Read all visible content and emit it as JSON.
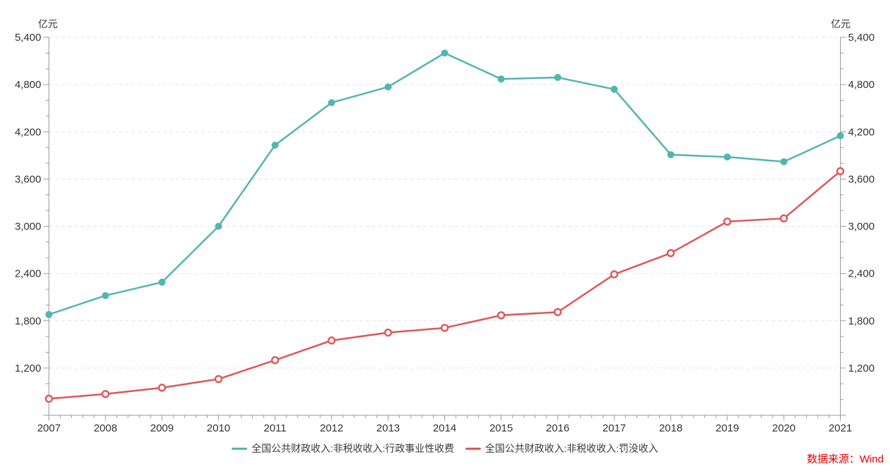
{
  "chart_data": {
    "type": "line",
    "title": "",
    "unit_label": "亿元",
    "x_categories": [
      "2007",
      "2008",
      "2009",
      "2010",
      "2011",
      "2012",
      "2013",
      "2014",
      "2015",
      "2016",
      "2017",
      "2018",
      "2019",
      "2020",
      "2021"
    ],
    "series": [
      {
        "name": "全国公共财政收入:非税收收入:行政事业性收费",
        "color": "#52b5b0",
        "marker": "filled-circle",
        "values": [
          1880,
          2120,
          2290,
          3000,
          4030,
          4570,
          4770,
          5200,
          4870,
          4890,
          4740,
          3910,
          3880,
          3820,
          4150
        ]
      },
      {
        "name": "全国公共财政收入:非税收收入:罚没收入",
        "color": "#e05656",
        "marker": "open-circle",
        "values": [
          810,
          870,
          950,
          1060,
          1300,
          1550,
          1650,
          1710,
          1870,
          1910,
          2390,
          2660,
          3060,
          3100,
          3700
        ]
      }
    ],
    "y_axis": {
      "min": 600,
      "max": 5400,
      "major_step": 600,
      "minor_step": 200,
      "ticks": [
        {
          "value": 1200,
          "label": "1,200"
        },
        {
          "value": 1800,
          "label": "1,800"
        },
        {
          "value": 2400,
          "label": "2,400"
        },
        {
          "value": 3000,
          "label": "3,000"
        },
        {
          "value": 3600,
          "label": "3,600"
        },
        {
          "value": 4200,
          "label": "4,200"
        },
        {
          "value": 4800,
          "label": "4,800"
        },
        {
          "value": 5400,
          "label": "5,400"
        }
      ]
    },
    "x_axis": {
      "minor_divisions": 5
    },
    "grid": "horizontal-dashed",
    "legend_position": "bottom-center",
    "source": "数据来源：Wind",
    "colors": {
      "grid": "#e3e3e3",
      "axis": "#9a9a9a",
      "tick_text": "#333333",
      "source_text": "#e60000"
    }
  }
}
